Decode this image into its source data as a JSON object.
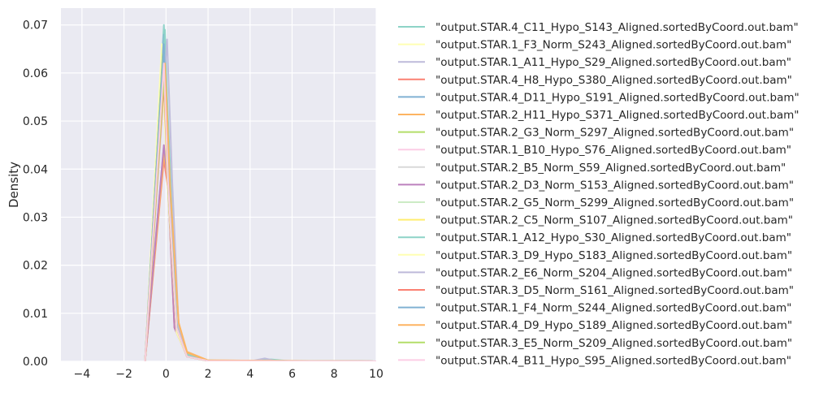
{
  "chart_data": {
    "type": "line",
    "title": "",
    "xlabel": "",
    "ylabel": "Density",
    "xlim": [
      -5,
      10
    ],
    "ylim": [
      0,
      0.0735
    ],
    "xticks": [
      -4,
      -2,
      0,
      2,
      4,
      6,
      8,
      10
    ],
    "yticks": [
      0.0,
      0.01,
      0.02,
      0.03,
      0.04,
      0.05,
      0.06,
      0.07
    ],
    "ytick_labels": [
      "0.00",
      "0.01",
      "0.02",
      "0.03",
      "0.04",
      "0.05",
      "0.06",
      "0.07"
    ],
    "grid": true,
    "legend_position": "right-outside",
    "series": [
      {
        "name": "\"output.STAR.4_C11_Hypo_S143_Aligned.sortedByCoord.out.bam\"",
        "color": "#8dd3c7",
        "x": [
          -1,
          -0.1,
          0.2,
          0.5,
          1,
          2,
          4,
          5,
          6,
          10
        ],
        "y": [
          0,
          0.07,
          0.04,
          0.008,
          0.0015,
          0.0002,
          0,
          0.0004,
          0,
          0
        ]
      },
      {
        "name": "\"output.STAR.1_F3_Norm_S243_Aligned.sortedByCoord.out.bam\"",
        "color": "#ffffb3",
        "x": [
          -1,
          -0.2,
          0.1,
          0.5,
          1,
          2,
          4,
          10
        ],
        "y": [
          0,
          0.066,
          0.036,
          0.007,
          0.0012,
          0.0001,
          0,
          0
        ]
      },
      {
        "name": "\"output.STAR.1_A11_Hypo_S29_Aligned.sortedByCoord.out.bam\"",
        "color": "#bebada",
        "x": [
          -1,
          -0.1,
          0.1,
          0.4,
          1,
          2,
          4,
          4.7,
          5.3,
          10
        ],
        "y": [
          0,
          0.045,
          0.038,
          0.008,
          0.0012,
          0.0001,
          0,
          0.0006,
          0,
          0
        ]
      },
      {
        "name": "\"output.STAR.4_H8_Hypo_S380_Aligned.sortedByCoord.out.bam\"",
        "color": "#fb8072",
        "x": [
          -1,
          -0.1,
          0.1,
          0.4,
          1,
          2,
          10
        ],
        "y": [
          0,
          0.042,
          0.036,
          0.007,
          0.0011,
          0.0001,
          0
        ]
      },
      {
        "name": "\"output.STAR.4_D11_Hypo_S191_Aligned.sortedByCoord.out.bam\"",
        "color": "#80b1d3",
        "x": [
          -1,
          -0.1,
          0.1,
          0.5,
          1,
          2,
          10
        ],
        "y": [
          0,
          0.068,
          0.04,
          0.007,
          0.0012,
          0.0001,
          0
        ]
      },
      {
        "name": "\"output.STAR.2_H11_Hypo_S371_Aligned.sortedByCoord.out.bam\"",
        "color": "#fdb462",
        "x": [
          -1,
          -0.1,
          0.2,
          0.6,
          1,
          2,
          10
        ],
        "y": [
          0,
          0.043,
          0.035,
          0.008,
          0.002,
          0.0002,
          0
        ]
      },
      {
        "name": "\"output.STAR.2_G3_Norm_S297_Aligned.sortedByCoord.out.bam\"",
        "color": "#b3de69",
        "x": [
          -1,
          -0.15,
          0.1,
          0.5,
          1,
          2,
          10
        ],
        "y": [
          0,
          0.064,
          0.036,
          0.007,
          0.001,
          0.0001,
          0
        ]
      },
      {
        "name": "\"output.STAR.1_B10_Hypo_S76_Aligned.sortedByCoord.out.bam\"",
        "color": "#fccde5",
        "x": [
          -1,
          -0.1,
          0.1,
          0.5,
          1,
          2,
          10
        ],
        "y": [
          0,
          0.065,
          0.038,
          0.007,
          0.0011,
          0.0001,
          0
        ]
      },
      {
        "name": "\"output.STAR.2_B5_Norm_S59_Aligned.sortedByCoord.out.bam\"",
        "color": "#d9d9d9",
        "x": [
          -1,
          -0.1,
          0.1,
          0.5,
          1,
          2,
          10
        ],
        "y": [
          0,
          0.056,
          0.036,
          0.007,
          0.001,
          0.0001,
          0
        ]
      },
      {
        "name": "\"output.STAR.2_D3_Norm_S153_Aligned.sortedByCoord.out.bam\"",
        "color": "#bc80bd",
        "x": [
          -1,
          -0.1,
          0.1,
          0.4,
          1,
          2,
          10
        ],
        "y": [
          0,
          0.045,
          0.037,
          0.007,
          0.001,
          0.0001,
          0
        ]
      },
      {
        "name": "\"output.STAR.2_G5_Norm_S299_Aligned.sortedByCoord.out.bam\"",
        "color": "#ccebc5",
        "x": [
          -1,
          -0.1,
          0.1,
          0.5,
          1,
          2,
          10
        ],
        "y": [
          0,
          0.06,
          0.037,
          0.007,
          0.001,
          0.0001,
          0
        ]
      },
      {
        "name": "\"output.STAR.2_C5_Norm_S107_Aligned.sortedByCoord.out.bam\"",
        "color": "#ffed6f",
        "x": [
          -1,
          -0.15,
          0.1,
          0.5,
          1,
          2,
          10
        ],
        "y": [
          0,
          0.063,
          0.036,
          0.007,
          0.001,
          0.0001,
          0
        ]
      },
      {
        "name": "\"output.STAR.1_A12_Hypo_S30_Aligned.sortedByCoord.out.bam\"",
        "color": "#8dd3c7",
        "x": [
          -1,
          -0.05,
          0.15,
          0.5,
          1,
          2,
          10
        ],
        "y": [
          0,
          0.069,
          0.04,
          0.008,
          0.0012,
          0.0001,
          0
        ]
      },
      {
        "name": "\"output.STAR.3_D9_Hypo_S183_Aligned.sortedByCoord.out.bam\"",
        "color": "#ffffb3",
        "x": [
          -1,
          -0.15,
          0.1,
          0.5,
          1,
          2,
          10
        ],
        "y": [
          0,
          0.058,
          0.035,
          0.006,
          0.001,
          0.0001,
          0
        ]
      },
      {
        "name": "\"output.STAR.2_E6_Norm_S204_Aligned.sortedByCoord.out.bam\"",
        "color": "#bebada",
        "x": [
          -1,
          0.05,
          0.3,
          0.6,
          1,
          2,
          10
        ],
        "y": [
          0,
          0.067,
          0.037,
          0.007,
          0.001,
          0.0001,
          0
        ]
      },
      {
        "name": "\"output.STAR.3_D5_Norm_S161_Aligned.sortedByCoord.out.bam\"",
        "color": "#fb8072",
        "x": [
          -1,
          -0.1,
          0.1,
          0.5,
          1,
          2,
          10
        ],
        "y": [
          0,
          0.058,
          0.036,
          0.007,
          0.001,
          0.0001,
          0
        ]
      },
      {
        "name": "\"output.STAR.1_F4_Norm_S244_Aligned.sortedByCoord.out.bam\"",
        "color": "#80b1d3",
        "x": [
          -1,
          -0.1,
          0.1,
          0.5,
          1,
          2,
          10
        ],
        "y": [
          0,
          0.066,
          0.038,
          0.007,
          0.001,
          0.0001,
          0
        ]
      },
      {
        "name": "\"output.STAR.4_D9_Hypo_S189_Aligned.sortedByCoord.out.bam\"",
        "color": "#fdb462",
        "x": [
          -1,
          -0.05,
          0.2,
          0.6,
          1,
          2,
          10
        ],
        "y": [
          0,
          0.062,
          0.036,
          0.008,
          0.0018,
          0.0002,
          0
        ]
      },
      {
        "name": "\"output.STAR.3_E5_Norm_S209_Aligned.sortedByCoord.out.bam\"",
        "color": "#b3de69",
        "x": [
          -1,
          -0.1,
          0.1,
          0.5,
          1,
          2,
          10
        ],
        "y": [
          0,
          0.06,
          0.036,
          0.007,
          0.001,
          0.0001,
          0
        ]
      },
      {
        "name": "\"output.STAR.4_B11_Hypo_S95_Aligned.sortedByCoord.out.bam\"",
        "color": "#fccde5",
        "x": [
          -1,
          -0.1,
          0.1,
          0.5,
          1,
          2,
          10
        ],
        "y": [
          0,
          0.062,
          0.037,
          0.007,
          0.001,
          0.0001,
          0
        ]
      }
    ]
  },
  "colors": {
    "plot_background": "#eaeaf2",
    "grid": "#ffffff",
    "text": "#262626"
  }
}
